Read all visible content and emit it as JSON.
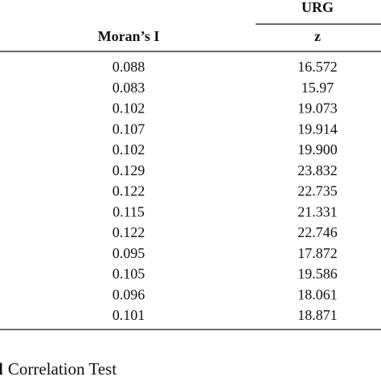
{
  "header": {
    "group": "URG",
    "columns": [
      "Moran’s I",
      "z"
    ]
  },
  "table": {
    "rows": [
      [
        "0.088",
        "16.572"
      ],
      [
        "0.083",
        "15.97"
      ],
      [
        "0.102",
        "19.073"
      ],
      [
        "0.107",
        "19.914"
      ],
      [
        "0.102",
        "19.900"
      ],
      [
        "0.129",
        "23.832"
      ],
      [
        "0.122",
        "22.735"
      ],
      [
        "0.115",
        "21.331"
      ],
      [
        "0.122",
        "22.746"
      ],
      [
        "0.095",
        "17.872"
      ],
      [
        "0.105",
        "19.586"
      ],
      [
        "0.096",
        "18.061"
      ],
      [
        "0.101",
        "18.871"
      ]
    ]
  },
  "caption": {
    "label": "l",
    "text": "Correlation Test"
  }
}
